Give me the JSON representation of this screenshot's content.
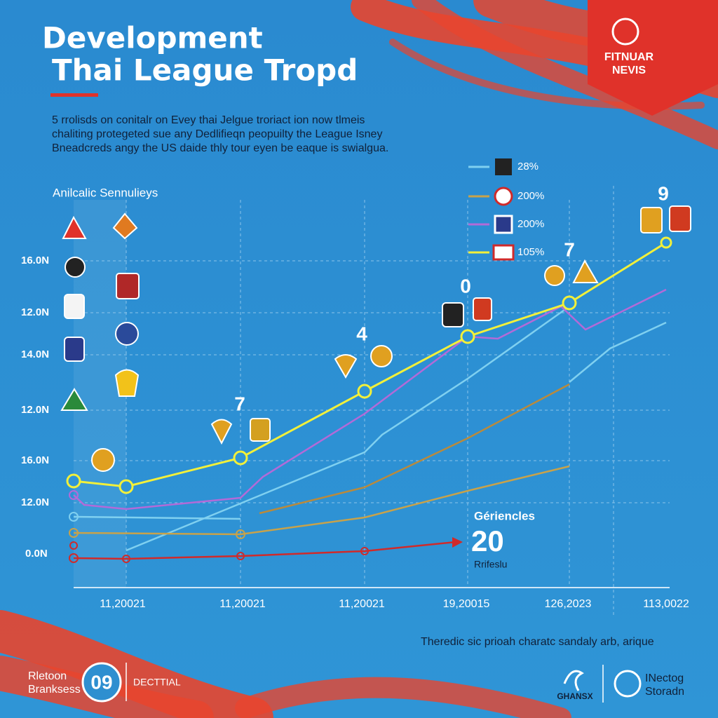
{
  "header": {
    "title_line1": "Development",
    "title_line2": "Thai League Tropd",
    "badge": [
      "FITNUAR",
      "NEVIS"
    ],
    "paragraph": [
      "5 rrolisds on conitalr on Evey thai Jelgue troriact ion now tlmeis",
      "chaliting protegeted sue any Dedlifieqn peopuilty the League Isney",
      "Bneadcreds angy the US daide thly tour eyen be eaque is swialgua."
    ]
  },
  "chart": {
    "axis_caption": "Anilcalic Sennulieys",
    "y_labels": [
      "16.0N",
      "12.0N",
      "14.0N",
      "12.0N",
      "16.0N",
      "12.0N",
      "0.0N"
    ],
    "x_labels": [
      "11,20021",
      "11,20021",
      "11,20021",
      "19,20015",
      "126,2023",
      "113,0022"
    ],
    "legend": [
      "28%",
      "200%",
      "200%",
      "105%"
    ],
    "annotations": [
      "7",
      "4",
      "0",
      "7",
      "9"
    ],
    "callout": {
      "label": "Gériencles",
      "number": "20",
      "sub": "Rrifeslu"
    },
    "footnote": "Theredic sic prioah charatc sandaly arb, arique"
  },
  "footer": {
    "left_text": [
      "Rletoon",
      "Branksess"
    ],
    "left_badge": "09",
    "left_label": "DECTTIAL",
    "right_left": "GHANSX",
    "right_text": [
      "INectog",
      "Storadn"
    ]
  }
}
